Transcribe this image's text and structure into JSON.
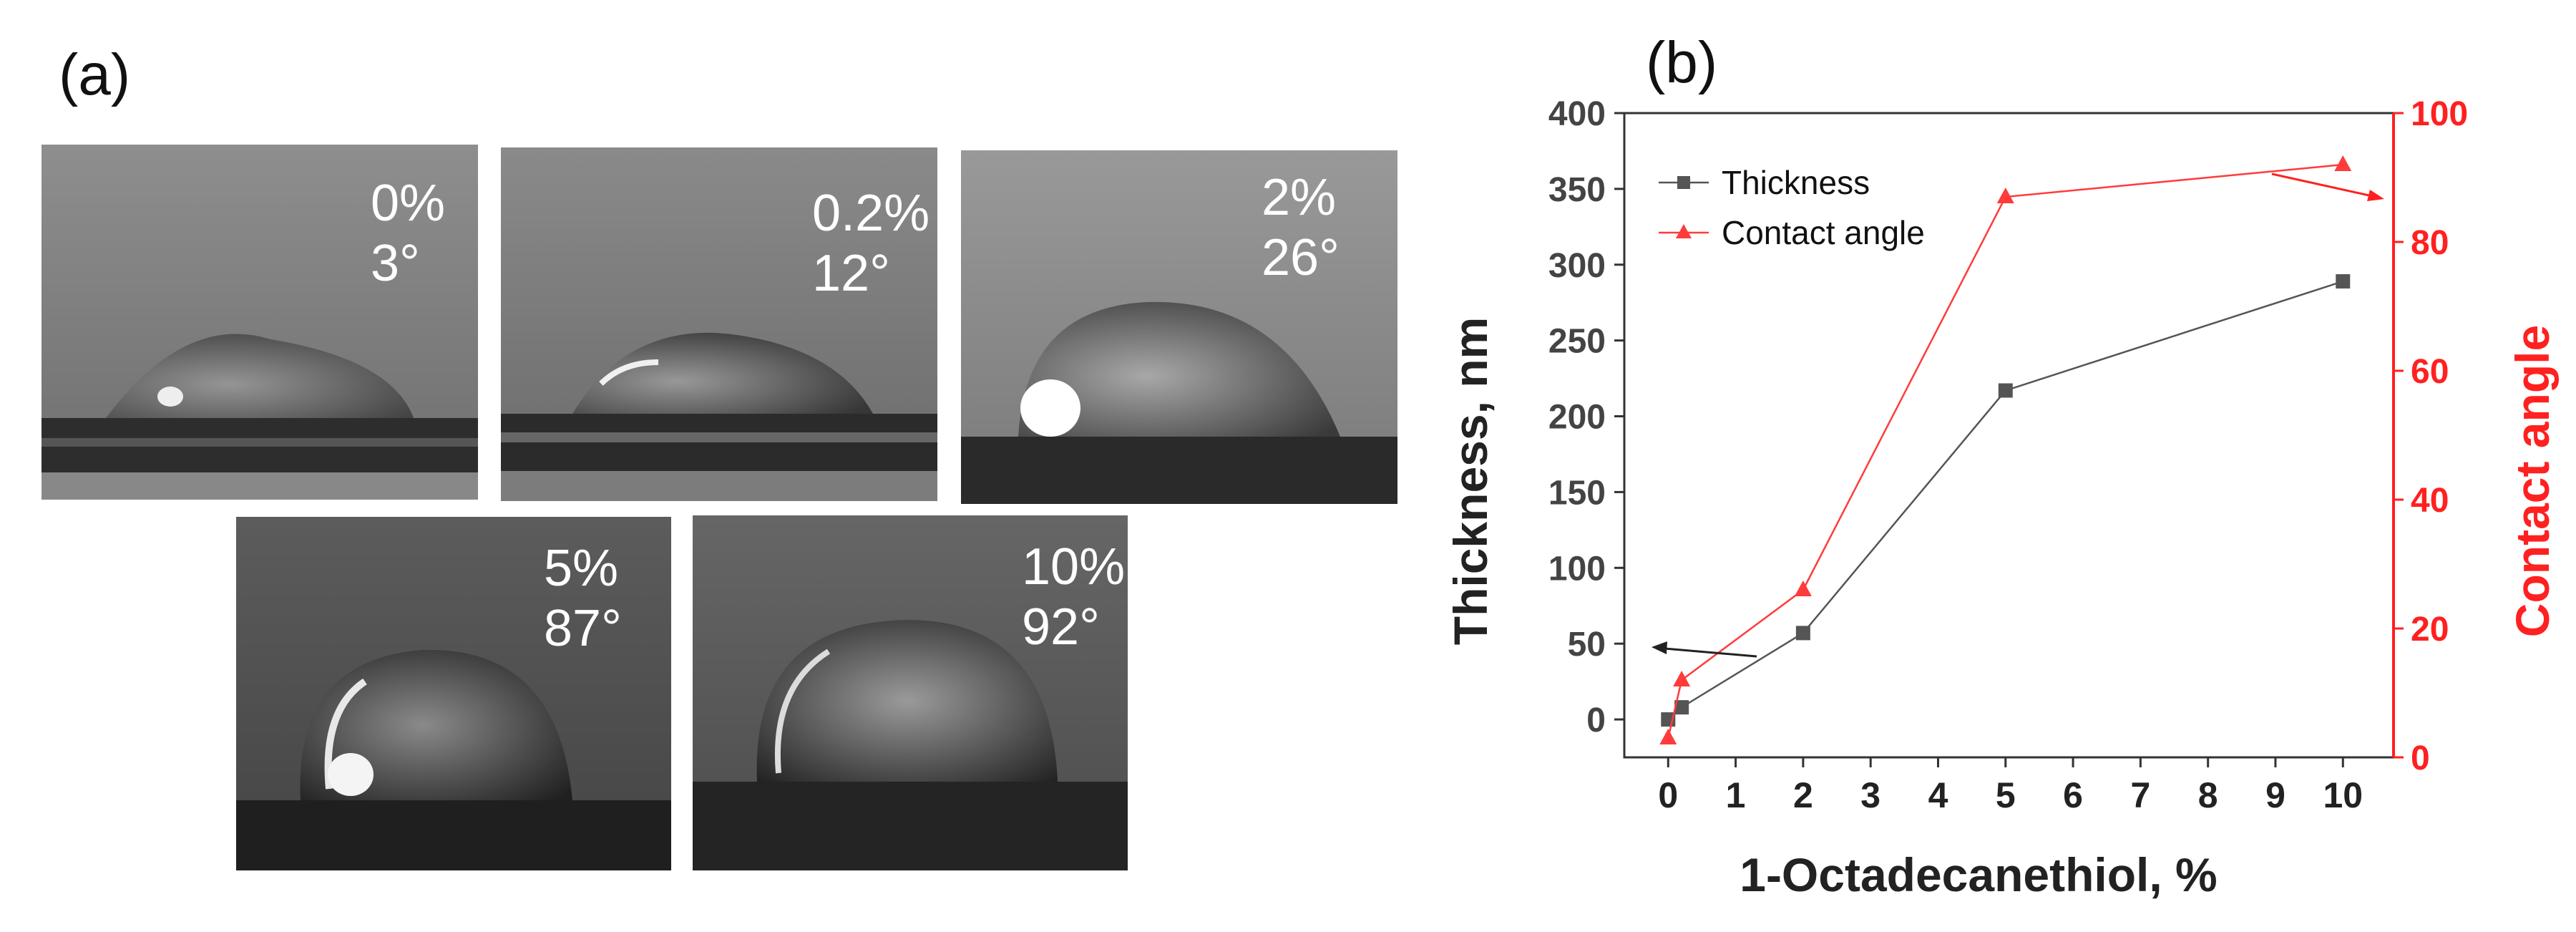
{
  "panel_a": {
    "label": "(a)",
    "photos": [
      {
        "concentration": "0%",
        "angle": "3°",
        "angle_value": 3
      },
      {
        "concentration": "0.2%",
        "angle": "12°",
        "angle_value": 12
      },
      {
        "concentration": "2%",
        "angle": "26°",
        "angle_value": 26
      },
      {
        "concentration": "5%",
        "angle": "87°",
        "angle_value": 87
      },
      {
        "concentration": "10%",
        "angle": "92°",
        "angle_value": 92
      }
    ]
  },
  "chart_data": {
    "panel_label": "(b)",
    "type": "line",
    "xlabel": "1-Octadecanethiol, %",
    "ylabel": "Thickness, nm",
    "y2label": "Contact angle",
    "xlim": [
      -0.65,
      10.75
    ],
    "xticks": [
      "0",
      "1",
      "2",
      "3",
      "4",
      "5",
      "6",
      "7",
      "8",
      "9",
      "10"
    ],
    "ylim": [
      -25,
      400
    ],
    "yticks": [
      "0",
      "50",
      "100",
      "150",
      "200",
      "250",
      "300",
      "350",
      "400"
    ],
    "y2lim": [
      0,
      100
    ],
    "y2ticks": [
      "0",
      "20",
      "40",
      "60",
      "80",
      "100"
    ],
    "grid": false,
    "legend_position": "top-left",
    "series": [
      {
        "name": "Thickness",
        "axis": "left",
        "marker": "square",
        "color": "#555555",
        "x": [
          0,
          0.2,
          2,
          5,
          10
        ],
        "y": [
          0,
          8,
          57,
          217,
          289
        ]
      },
      {
        "name": "Contact angle",
        "axis": "right",
        "marker": "triangle",
        "color": "#ff3b3b",
        "x": [
          0,
          0.2,
          2,
          5,
          10
        ],
        "y": [
          3,
          12,
          26,
          87,
          92
        ]
      }
    ],
    "colors": {
      "axis_left": "#333333",
      "axis_right": "#ff2020"
    }
  }
}
